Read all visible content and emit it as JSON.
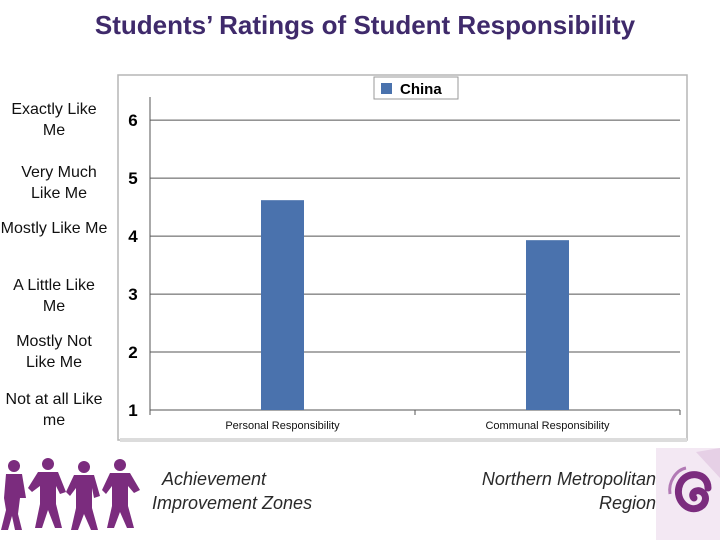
{
  "slide_title": "Students’ Ratings of Student Responsibility",
  "rating_labels": [
    {
      "value": 6,
      "text": "Exactly Like Me"
    },
    {
      "value": 5,
      "text": "Very Much Like Me"
    },
    {
      "value": 4,
      "text": "Mostly Like Me"
    },
    {
      "value": 3,
      "text": "A Little Like Me"
    },
    {
      "value": 2,
      "text": "Mostly Not Like Me"
    },
    {
      "value": 1,
      "text": "Not at all Like me"
    }
  ],
  "chart_data": {
    "type": "bar",
    "categories": [
      "Personal Responsibility",
      "Communal Responsibility"
    ],
    "series": [
      {
        "name": "China",
        "values": [
          4.62,
          3.93
        ],
        "color": "#4a72ad"
      }
    ],
    "y_ticks": [
      1,
      2,
      3,
      4,
      5,
      6
    ],
    "ylim": [
      1,
      6.4
    ],
    "grid": true,
    "legend": "top-center"
  },
  "footer": {
    "left_line1": "Achievement",
    "left_line2": "Improvement Zones",
    "right_line1": "Northern Metropolitan",
    "right_line2": "Region"
  },
  "colors": {
    "title": "#3f2a6b",
    "bar": "#4a72ad",
    "logo_purple": "#7b2c7e"
  },
  "icons": {
    "left_logo": "children-silhouette-logo",
    "right_logo": "swirl-logo"
  }
}
